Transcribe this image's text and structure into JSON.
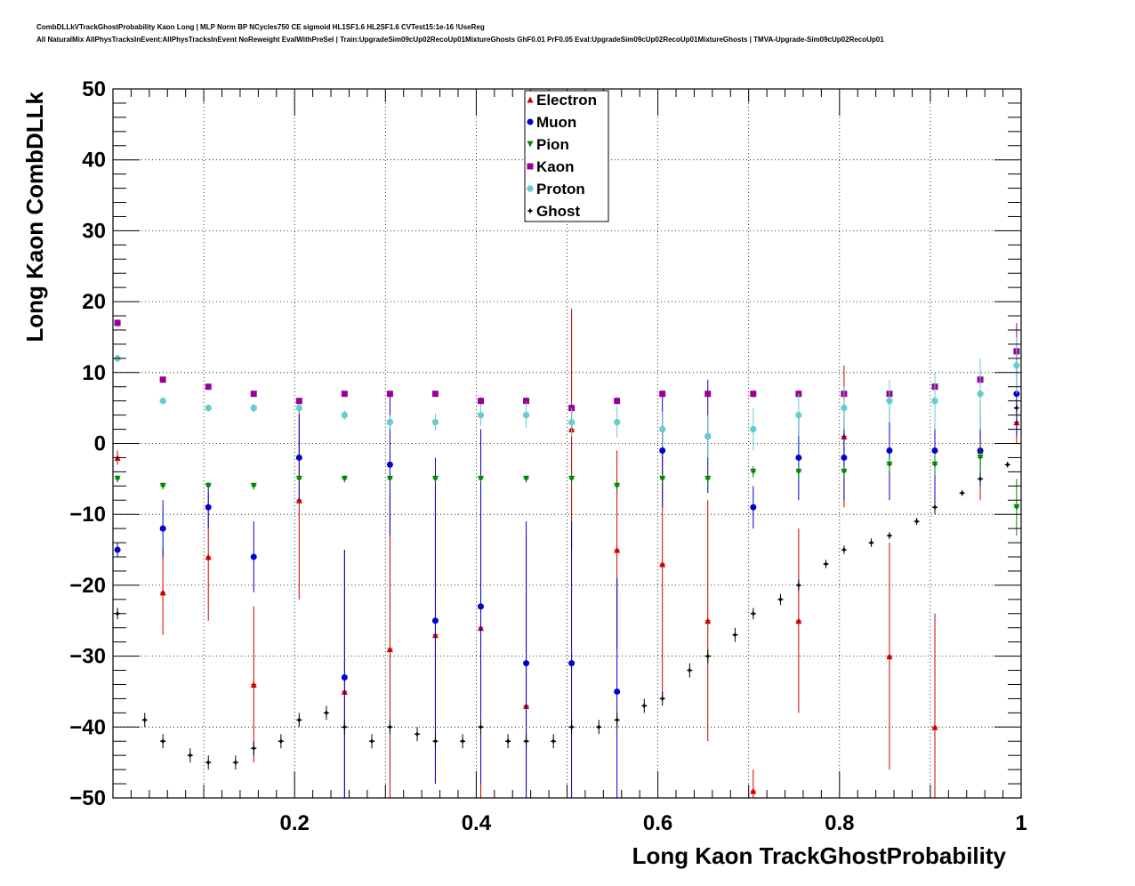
{
  "header": {
    "title_line1": "CombDLLkVTrackGhostProbability Kaon Long | MLP Norm BP NCycles750 CE sigmoid HL1SF1.6 HL2SF1.6 CVTest15:1e-16 !UseReg",
    "title_line2": "All NaturalMix AllPhysTracksInEvent:AllPhysTracksInEvent NoReweight EvalWithPreSel | Train:UpgradeSim09cUp02RecoUp01MixtureGhosts GhF0.01 PrF0.05 Eval:UpgradeSim09cUp02RecoUp01MixtureGhosts | TMVA-Upgrade-Sim09cUp02RecoUp01"
  },
  "chart_data": {
    "type": "scatter",
    "xlabel": "Long Kaon TrackGhostProbability",
    "ylabel": "Long Kaon CombDLLk",
    "xlim": [
      0.0,
      1.0
    ],
    "ylim": [
      -50,
      50
    ],
    "x_ticks": [
      "0.2",
      "0.4",
      "0.6",
      "0.8",
      "1"
    ],
    "y_ticks": [
      "50",
      "40",
      "30",
      "20",
      "10",
      "0",
      "−10",
      "−20",
      "−30",
      "−40",
      "−50"
    ],
    "grid": true,
    "legend_position": "top-center",
    "series": [
      {
        "name": "Electron",
        "color": "#cc0000",
        "marker": "triangle-up",
        "x": [
          0.005,
          0.055,
          0.105,
          0.155,
          0.205,
          0.255,
          0.305,
          0.355,
          0.405,
          0.455,
          0.505,
          0.555,
          0.605,
          0.655,
          0.705,
          0.755,
          0.805,
          0.855,
          0.905,
          0.955,
          0.995
        ],
        "y": [
          -2,
          -21,
          -16,
          -34,
          -8,
          -35,
          -29,
          -27,
          -26,
          -37,
          2,
          -15,
          -17,
          -25,
          -49,
          -25,
          1,
          -30,
          -40,
          -1,
          3
        ],
        "err": [
          1,
          6,
          9,
          11,
          14,
          20,
          22,
          21,
          24,
          24,
          17,
          14,
          19,
          17,
          3,
          13,
          10,
          16,
          16,
          7,
          3
        ]
      },
      {
        "name": "Muon",
        "color": "#0000cc",
        "marker": "circle",
        "x": [
          0.005,
          0.055,
          0.105,
          0.155,
          0.205,
          0.255,
          0.305,
          0.355,
          0.405,
          0.455,
          0.505,
          0.555,
          0.605,
          0.655,
          0.705,
          0.755,
          0.805,
          0.855,
          0.905,
          0.955,
          0.995
        ],
        "y": [
          -15,
          -12,
          -9,
          -16,
          -2,
          -33,
          -3,
          -25,
          -23,
          -31,
          -31,
          -35,
          -1,
          1,
          -9,
          -2,
          -2,
          -1,
          -1,
          -1,
          7
        ],
        "err": [
          1,
          4,
          3,
          5,
          6,
          18,
          10,
          23,
          25,
          20,
          20,
          16,
          8,
          8,
          3,
          6,
          6,
          7,
          9,
          5,
          6
        ]
      },
      {
        "name": "Pion",
        "color": "#008800",
        "marker": "triangle-down",
        "x": [
          0.005,
          0.055,
          0.105,
          0.155,
          0.205,
          0.255,
          0.305,
          0.355,
          0.405,
          0.455,
          0.505,
          0.555,
          0.605,
          0.655,
          0.705,
          0.755,
          0.805,
          0.855,
          0.905,
          0.955,
          0.995
        ],
        "y": [
          -5,
          -6,
          -6,
          -6,
          -5,
          -5,
          -5,
          -5,
          -5,
          -5,
          -5,
          -6,
          -5,
          -5,
          -4,
          -4,
          -4,
          -3,
          -3,
          -2,
          -9
        ],
        "err": [
          0.5,
          0.5,
          0.5,
          0.5,
          0.5,
          0.5,
          0.5,
          0.5,
          0.5,
          0.5,
          0.6,
          0.7,
          0.7,
          0.8,
          0.8,
          0.9,
          0.9,
          1,
          1.5,
          2,
          4
        ]
      },
      {
        "name": "Kaon",
        "color": "#990099",
        "marker": "square",
        "x": [
          0.005,
          0.055,
          0.105,
          0.155,
          0.205,
          0.255,
          0.305,
          0.355,
          0.405,
          0.455,
          0.505,
          0.555,
          0.605,
          0.655,
          0.705,
          0.755,
          0.805,
          0.855,
          0.905,
          0.955,
          0.995
        ],
        "y": [
          17,
          9,
          8,
          7,
          6,
          7,
          7,
          7,
          6,
          6,
          5,
          6,
          7,
          7,
          7,
          7,
          7,
          7,
          8,
          9,
          13
        ],
        "err": [
          0.5,
          0.4,
          0.4,
          0.4,
          0.4,
          0.4,
          0.4,
          0.4,
          0.5,
          0.5,
          0.5,
          0.5,
          0.5,
          0.5,
          0.5,
          0.5,
          0.5,
          0.5,
          0.6,
          0.7,
          4
        ]
      },
      {
        "name": "Proton",
        "color": "#66cccc",
        "marker": "cross",
        "x": [
          0.005,
          0.055,
          0.105,
          0.155,
          0.205,
          0.255,
          0.305,
          0.355,
          0.405,
          0.455,
          0.505,
          0.555,
          0.605,
          0.655,
          0.705,
          0.755,
          0.805,
          0.855,
          0.905,
          0.955,
          0.995
        ],
        "y": [
          12,
          6,
          5,
          5,
          5,
          4,
          3,
          3,
          4,
          4,
          3,
          3,
          2,
          1,
          2,
          4,
          5,
          6,
          6,
          7,
          11
        ],
        "err": [
          0.5,
          0.5,
          0.5,
          0.6,
          0.6,
          0.7,
          1,
          1.2,
          1.5,
          1.8,
          2,
          2.2,
          2.5,
          3,
          3,
          3,
          3,
          3,
          4,
          5,
          4
        ]
      },
      {
        "name": "Ghost",
        "color": "#000000",
        "marker": "star",
        "x": [
          0.005,
          0.035,
          0.055,
          0.085,
          0.105,
          0.135,
          0.155,
          0.185,
          0.205,
          0.235,
          0.255,
          0.285,
          0.305,
          0.335,
          0.355,
          0.385,
          0.405,
          0.435,
          0.455,
          0.485,
          0.505,
          0.535,
          0.555,
          0.585,
          0.605,
          0.635,
          0.655,
          0.685,
          0.705,
          0.735,
          0.755,
          0.785,
          0.805,
          0.835,
          0.855,
          0.885,
          0.905,
          0.935,
          0.955,
          0.985,
          0.995
        ],
        "y": [
          -24,
          -39,
          -42,
          -44,
          -45,
          -45,
          -43,
          -42,
          -39,
          -38,
          -40,
          -42,
          -40,
          -41,
          -42,
          -42,
          -40,
          -42,
          -42,
          -42,
          -40,
          -40,
          -39,
          -37,
          -36,
          -32,
          -30,
          -27,
          -24,
          -22,
          -20,
          -17,
          -15,
          -14,
          -13,
          -11,
          -9,
          -7,
          -5,
          -3,
          5
        ],
        "err": [
          0.8,
          1,
          1,
          1,
          1,
          1,
          1,
          1,
          1,
          1,
          1,
          1,
          1,
          1,
          1,
          1,
          1,
          1,
          1,
          1,
          1,
          1,
          1,
          1,
          1,
          1,
          1,
          1,
          0.8,
          0.8,
          0.8,
          0.6,
          0.6,
          0.6,
          0.5,
          0.5,
          0.5,
          0.4,
          0.4,
          0.4,
          0.5
        ]
      }
    ]
  }
}
